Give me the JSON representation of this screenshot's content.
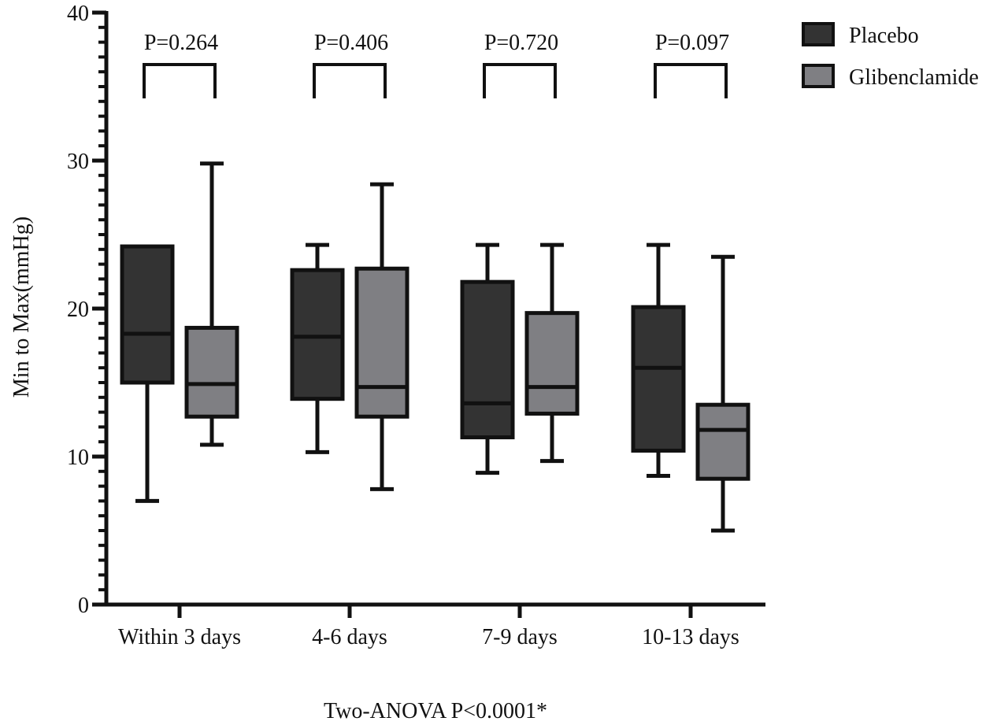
{
  "chart_data": {
    "type": "boxplot",
    "title": "",
    "xlabel": "",
    "ylabel": "Min to Max(mmHg)",
    "ylim": [
      0,
      40
    ],
    "yticks": [
      0,
      10,
      20,
      30,
      40
    ],
    "yminor_step": 1,
    "grid": false,
    "legend_position": "top-right",
    "categories": [
      "Within 3 days",
      "4-6 days",
      "7-9 days",
      "10-13 days"
    ],
    "series": [
      {
        "name": "Placebo",
        "color": "#333333",
        "boxes": [
          {
            "min": 7.0,
            "q1": 15.0,
            "median": 18.3,
            "q3": 24.2,
            "max": 24.2
          },
          {
            "min": 10.3,
            "q1": 13.9,
            "median": 18.1,
            "q3": 22.6,
            "max": 24.3
          },
          {
            "min": 8.9,
            "q1": 11.3,
            "median": 13.6,
            "q3": 21.8,
            "max": 24.3
          },
          {
            "min": 8.7,
            "q1": 10.4,
            "median": 16.0,
            "q3": 20.1,
            "max": 24.3
          }
        ]
      },
      {
        "name": "Glibenclamide",
        "color": "#7f7f83",
        "boxes": [
          {
            "min": 10.8,
            "q1": 12.7,
            "median": 14.9,
            "q3": 18.7,
            "max": 29.8
          },
          {
            "min": 7.8,
            "q1": 12.7,
            "median": 14.7,
            "q3": 22.7,
            "max": 28.4
          },
          {
            "min": 9.7,
            "q1": 12.9,
            "median": 14.7,
            "q3": 19.7,
            "max": 24.3
          },
          {
            "min": 5.0,
            "q1": 8.5,
            "median": 11.8,
            "q3": 13.5,
            "max": 23.5
          }
        ]
      }
    ],
    "comparisons": [
      "P=0.264",
      "P=0.406",
      "P=0.720",
      "P=0.097"
    ],
    "footnote": "Two-ANOVA P<0.0001*"
  }
}
